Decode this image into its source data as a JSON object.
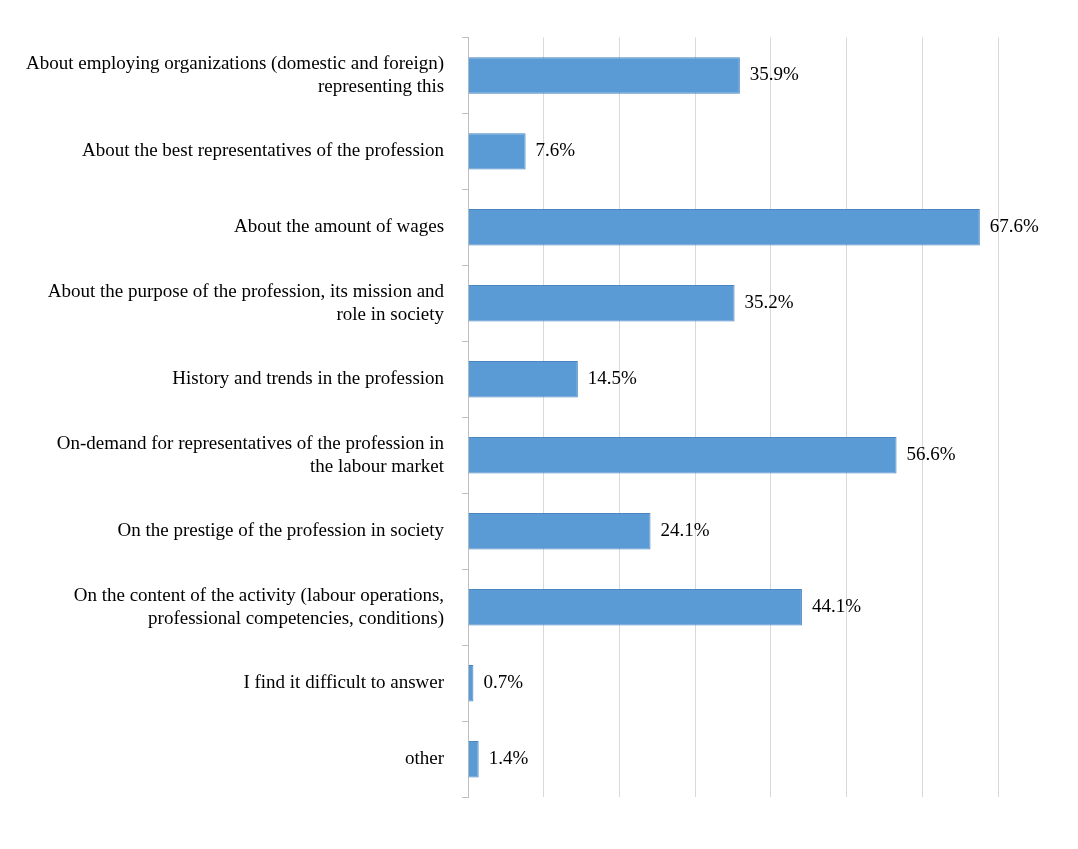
{
  "chart_data": {
    "type": "bar",
    "orientation": "horizontal",
    "categories": [
      "About employing organizations (domestic and foreign) representing this",
      "About the best representatives of the profession",
      "About the amount of wages",
      "About the purpose of the profession, its mission and role in society",
      "History and trends in the profession",
      "On-demand for representatives of the profession in the labour market",
      "On the prestige of the profession in society",
      "On the content of the activity (labour operations, professional competencies, conditions)",
      "I find it difficult to answer",
      "other"
    ],
    "values": [
      35.9,
      7.6,
      67.6,
      35.2,
      14.5,
      56.6,
      24.1,
      44.1,
      0.7,
      1.4
    ],
    "value_labels": [
      "35.9%",
      "7.6%",
      "67.6%",
      "35.2%",
      "14.5%",
      "56.6%",
      "24.1%",
      "44.1%",
      "0.7%",
      "1.4%"
    ],
    "color": "#5b9bd5",
    "xlim": [
      0,
      70
    ],
    "xticks": [
      {
        "value": 0,
        "label": null
      },
      {
        "value": 10,
        "label": null
      },
      {
        "value": 20,
        "label": null
      },
      {
        "value": 30,
        "label": null
      },
      {
        "value": 40,
        "label": null
      },
      {
        "value": 50,
        "label": null
      },
      {
        "value": 60,
        "label": null
      },
      {
        "value": 70,
        "label": null
      }
    ],
    "tick_labels": "y",
    "grid": "x",
    "legend": false
  }
}
